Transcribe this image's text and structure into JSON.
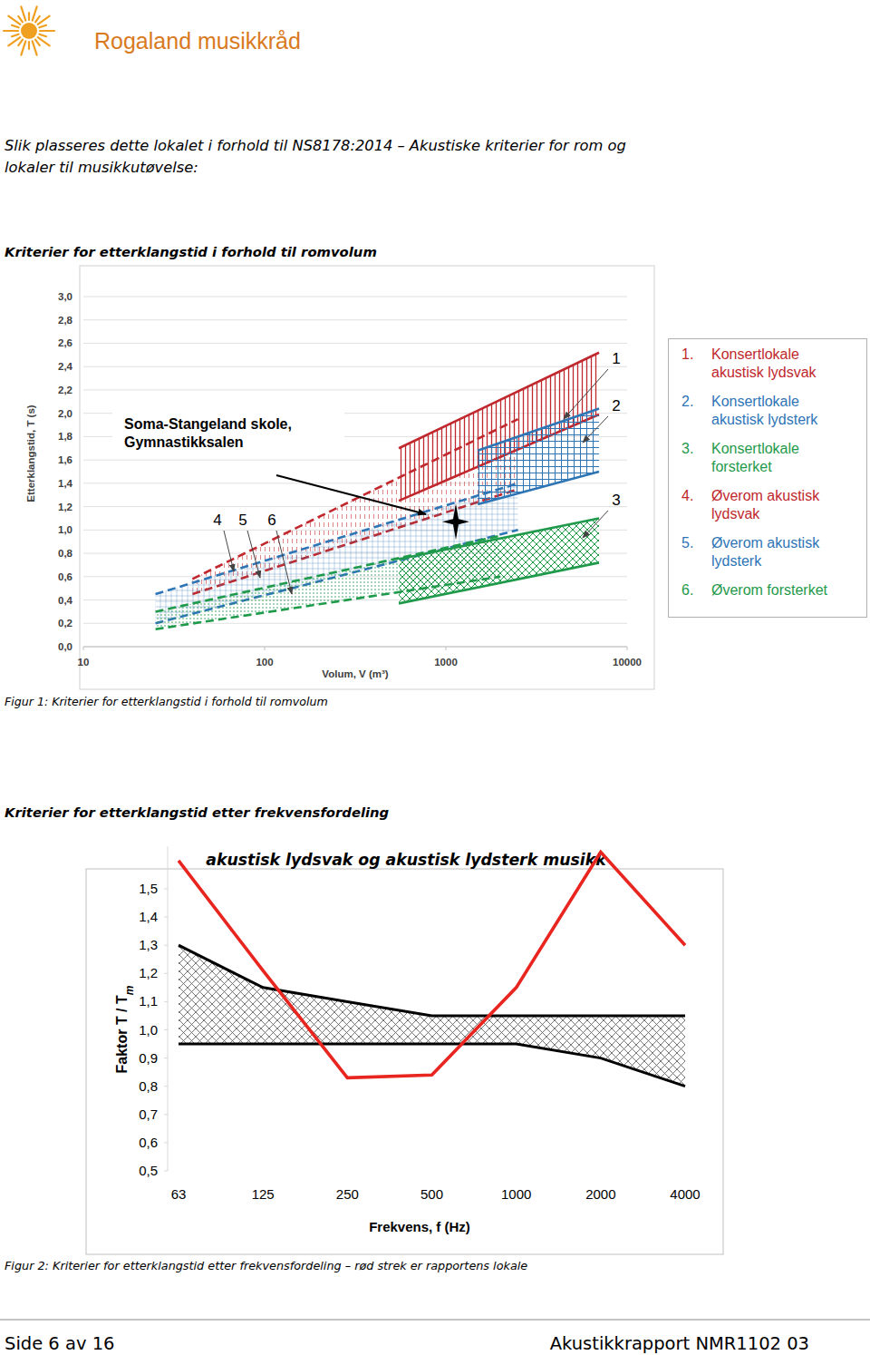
{
  "logo": {
    "text": "Rogaland musikkråd"
  },
  "intro": [
    "Slik plasseres dette lokalet i forhold til NS8178:2014 – Akustiske kriterier for rom og",
    "lokaler til musikkutøvelse:"
  ],
  "heading_1": "Kriterier for etterklangstid i forhold til romvolum",
  "caption_1": "Figur 1: Kriterier for etterklangstid i forhold til romvolum",
  "heading_2": "Kriterier for etterklangstid etter frekvensfordeling",
  "caption_2": "Figur 2: Kriterier for etterklangstid etter frekvensfordeling – rød strek er rapportens lokale",
  "footer": {
    "page": "Side 6 av 16",
    "report": "Akustikkrapport NMR1102 03"
  },
  "chart_data": [
    {
      "type": "band",
      "x_label": "Volum, V (m³)",
      "y_label": "Etterklangstid, T (s)",
      "log": "x",
      "xlim": [
        10,
        10000
      ],
      "xticks": [
        10,
        100,
        1000,
        10000
      ],
      "ylim": [
        0,
        3
      ],
      "yticks": [
        {
          "value": 0,
          "label": "0,0"
        },
        {
          "value": 0.2,
          "label": "0,2"
        },
        {
          "value": 0.4,
          "label": "0,4"
        },
        {
          "value": 0.6,
          "label": "0,6"
        },
        {
          "value": 0.8,
          "label": "0,8"
        },
        {
          "value": 1,
          "label": "1,0"
        },
        {
          "value": 1.2,
          "label": "1,2"
        },
        {
          "value": 1.4,
          "label": "1,4"
        },
        {
          "value": 1.6,
          "label": "1,6"
        },
        {
          "value": 1.8,
          "label": "1,8"
        },
        {
          "value": 2,
          "label": "2,0"
        },
        {
          "value": 2.2,
          "label": "2,2"
        },
        {
          "value": 2.4,
          "label": "2,4"
        },
        {
          "value": 2.6,
          "label": "2,6"
        },
        {
          "value": 2.8,
          "label": "2,8"
        },
        {
          "value": 3,
          "label": "3,0"
        }
      ],
      "grid": true,
      "annotation": {
        "lines": [
          "Soma-Stangeland skole,",
          "Gymnastikksalen"
        ]
      },
      "series": [
        {
          "name": "Konsertlokale akustisk lydsvak",
          "number": "1",
          "legend_number": "1.",
          "type": "band",
          "color": "#c0282d",
          "line_style": "solid",
          "x": [
            550,
            7000
          ],
          "low": [
            1.25,
            1.99
          ],
          "high": [
            1.7,
            2.52
          ]
        },
        {
          "name": "Konsertlokale akustisk lydsterk",
          "number": "2",
          "legend_number": "2.",
          "type": "band",
          "color": "#2e75b6",
          "line_style": "solid",
          "x": [
            1500,
            7000
          ],
          "low": [
            1.22,
            1.5
          ],
          "high": [
            1.68,
            2.04
          ]
        },
        {
          "name": "Konsertlokale forsterket",
          "number": "3",
          "legend_number": "3.",
          "type": "band",
          "color": "#1f9a4b",
          "line_style": "solid",
          "x": [
            550,
            7000
          ],
          "low": [
            0.37,
            0.72
          ],
          "high": [
            0.75,
            1.1
          ]
        },
        {
          "name": "Øverom akustisk lydsvak",
          "number": "4",
          "legend_number": "4.",
          "type": "band",
          "color": "#c0282d",
          "line_style": "dashed",
          "x": [
            40,
            2500
          ],
          "low": [
            0.45,
            1.35
          ],
          "high": [
            0.58,
            1.95
          ]
        },
        {
          "name": "Øverom akustisk lydsterk",
          "number": "5",
          "legend_number": "5.",
          "type": "band",
          "color": "#2e75b6",
          "line_style": "dashed",
          "x": [
            25,
            2500
          ],
          "low": [
            0.2,
            1.0
          ],
          "high": [
            0.45,
            1.4
          ]
        },
        {
          "name": "Øverom forsterket",
          "number": "6",
          "legend_number": "6.",
          "type": "band",
          "color": "#1f9a4b",
          "line_style": "dashed",
          "x": [
            25,
            2000
          ],
          "low": [
            0.15,
            0.6
          ],
          "high": [
            0.3,
            0.95
          ]
        },
        {
          "type": "scatter",
          "marker": "star",
          "color": "#000000",
          "x": [
            1135
          ],
          "values": [
            1.07
          ]
        }
      ]
    },
    {
      "type": "line",
      "title": "akustisk lydsvak og akustisk lydsterk musikk",
      "x_label": "Frekvens, f (Hz)",
      "y_label": {
        "text": "Faktor T / T",
        "sub": "m"
      },
      "categories": [
        63,
        125,
        250,
        500,
        1000,
        2000,
        4000
      ],
      "ylim": [
        0.5,
        1.65
      ],
      "yticks": [
        {
          "value": 0.5,
          "label": "0,5"
        },
        {
          "value": 0.6,
          "label": "0,6"
        },
        {
          "value": 0.7,
          "label": "0,7"
        },
        {
          "value": 0.8,
          "label": "0,8"
        },
        {
          "value": 0.9,
          "label": "0,9"
        },
        {
          "value": 1,
          "label": "1,0"
        },
        {
          "value": 1.1,
          "label": "1,1"
        },
        {
          "value": 1.2,
          "label": "1,2"
        },
        {
          "value": 1.3,
          "label": "1,3"
        },
        {
          "value": 1.4,
          "label": "1,4"
        },
        {
          "value": 1.5,
          "label": "1,5"
        }
      ],
      "series": [
        {
          "color": "#000000",
          "values": [
            1.3,
            1.15,
            1.1,
            1.05,
            1.05,
            1.05,
            1.05
          ]
        },
        {
          "color": "#000000",
          "values": [
            0.95,
            0.95,
            0.95,
            0.95,
            0.95,
            0.9,
            0.8
          ]
        },
        {
          "color": "#e8251f",
          "values": [
            1.6,
            1.21,
            0.83,
            0.84,
            1.15,
            1.63,
            1.3
          ]
        }
      ]
    }
  ]
}
